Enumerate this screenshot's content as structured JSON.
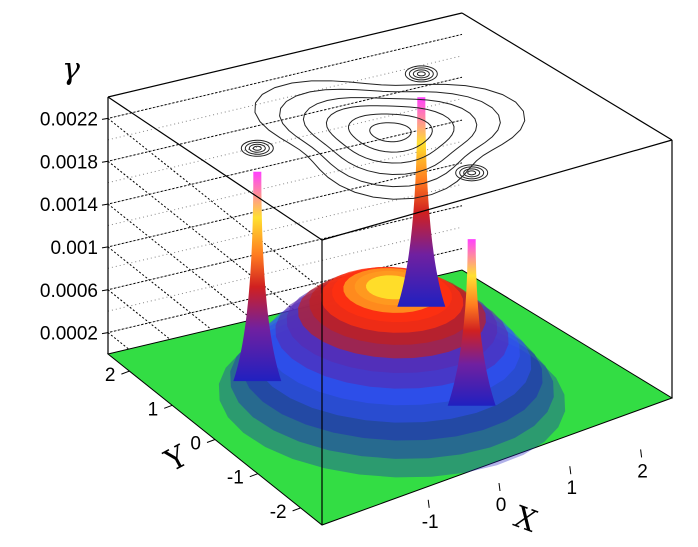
{
  "chart_data": {
    "type": "surface3d",
    "title": "",
    "xlabel": "X",
    "ylabel": "Y",
    "zlabel": "γ",
    "x_ticks": [
      "-1",
      "0",
      "1",
      "2"
    ],
    "y_ticks": [
      "-2",
      "-1",
      "0",
      "1",
      "2"
    ],
    "z_ticks": [
      "0.0002",
      "0.0006",
      "0.001",
      "0.0014",
      "0.0018",
      "0.0022"
    ],
    "xlim": [
      -2.5,
      2.5
    ],
    "ylim": [
      -2.5,
      2.5
    ],
    "zlim": [
      0,
      0.0024
    ],
    "grid": true,
    "surface": {
      "central_peak": {
        "x": 0,
        "y": 0,
        "z": 0.00105
      },
      "spikes": [
        {
          "x": -1.6,
          "y": 0.5,
          "z": 0.0022
        },
        {
          "x": 1.2,
          "y": 1.3,
          "z": 0.0022
        },
        {
          "x": 0.4,
          "y": -1.2,
          "z": 0.0018
        }
      ],
      "base_color": "#33dd44",
      "colormap": [
        "#2020c0",
        "#3050ff",
        "#5a2ab0",
        "#c02020",
        "#ff3010",
        "#ff9a20",
        "#ffe02a",
        "#ff50ff"
      ]
    },
    "contour_projection": "top"
  }
}
